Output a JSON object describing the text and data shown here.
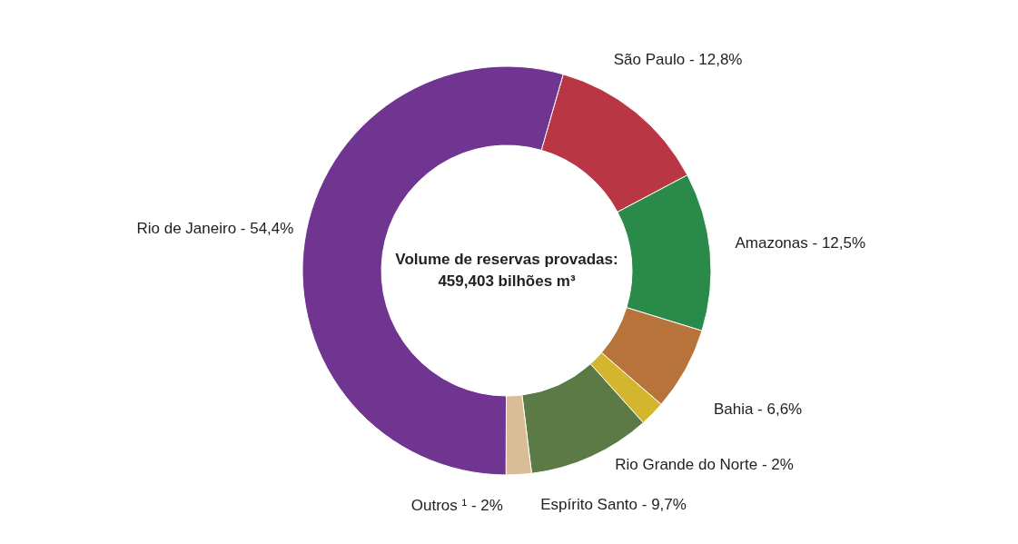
{
  "chart_data": {
    "type": "donut",
    "categories": [
      "São Paulo",
      "Amazonas",
      "Bahia",
      "Rio Grande do Norte",
      "Espírito Santo",
      "Outros ¹",
      "Rio de Janeiro"
    ],
    "values": [
      12.8,
      12.5,
      6.6,
      2,
      9.7,
      2,
      54.4
    ],
    "value_labels": [
      "12,8%",
      "12,5%",
      "6,6%",
      "2%",
      "9,7%",
      "2%",
      "54,4%"
    ],
    "colors": [
      "#b93645",
      "#2a8a4a",
      "#b8733a",
      "#d4b52e",
      "#5b7a45",
      "#d9bd96",
      "#6f3590"
    ],
    "annotations": [
      "Volume de reservas provadas:",
      "459,403 bilhões m³"
    ]
  }
}
